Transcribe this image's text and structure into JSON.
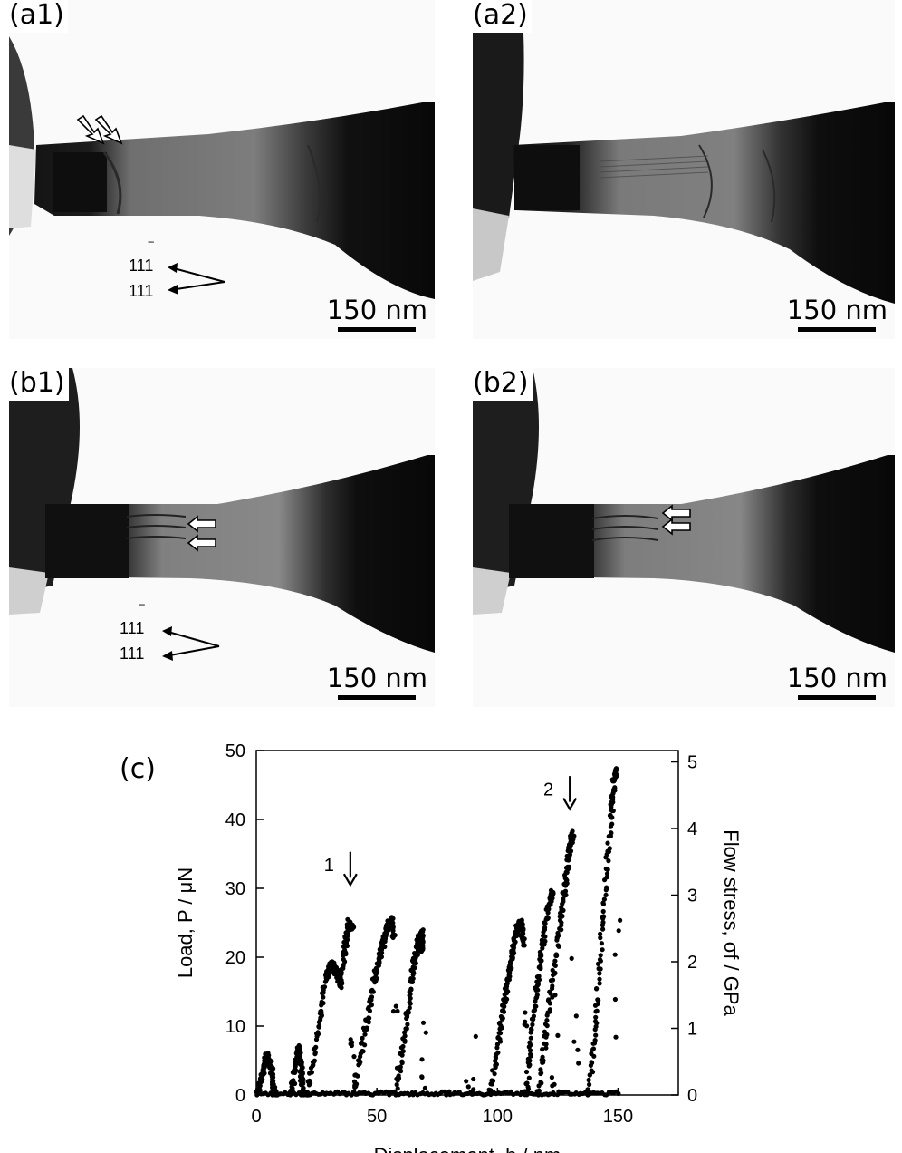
{
  "panels": [
    {
      "id": "a1",
      "label": "(a1)",
      "scale": "150 nm",
      "miller": [
        "111",
        "111"
      ],
      "arrow_style": "hollow-diagonal"
    },
    {
      "id": "a2",
      "label": "(a2)",
      "scale": "150 nm"
    },
    {
      "id": "b1",
      "label": "(b1)",
      "scale": "150 nm",
      "miller": [
        "111",
        "111"
      ],
      "arrow_style": "hollow-horizontal"
    },
    {
      "id": "b2",
      "label": "(b2)",
      "scale": "150 nm",
      "arrow_style": "hollow-horizontal"
    }
  ],
  "chart_data": {
    "type": "scatter",
    "label": "(c)",
    "xlabel": "Displacement, h / nm",
    "ylabel": "Load, P / μN",
    "y2label": "Flow stress, σf / GPa",
    "xlim": [
      0,
      175
    ],
    "ylim": [
      0,
      50
    ],
    "y2lim": [
      0,
      5.17
    ],
    "xticks": [
      0,
      50,
      100,
      150
    ],
    "yticks": [
      0,
      10,
      20,
      30,
      40,
      50
    ],
    "y2ticks": [
      0,
      1,
      2,
      3,
      4,
      5
    ],
    "grid": false,
    "annotations": [
      {
        "text": "1",
        "x": 39,
        "y": 30.5
      },
      {
        "text": "2",
        "x": 130,
        "y": 41.5
      }
    ],
    "series": [
      {
        "segments": [
          {
            "type": "bump",
            "x": [
              0.5,
              3,
              4.5,
              6,
              7.5
            ],
            "y": [
              0,
              4,
              5.8,
              4,
              0
            ]
          },
          {
            "type": "bump",
            "x": [
              14.5,
              16,
              17.5,
              18.5,
              19.5
            ],
            "y": [
              0,
              4,
              6.8,
              4,
              0
            ]
          },
          {
            "type": "ramp",
            "x": [
              21,
              26,
              29,
              31,
              33,
              35,
              37,
              38.5,
              40
            ],
            "y": [
              0,
              10,
              17.5,
              19,
              18,
              16,
              22,
              25,
              24
            ]
          },
          {
            "type": "ramp",
            "x": [
              40,
              45,
              49,
              52,
              54,
              56,
              57
            ],
            "y": [
              0,
              9,
              17,
              21,
              24,
              25.5,
              23
            ]
          },
          {
            "type": "ramp",
            "x": [
              58,
              62,
              65,
              67,
              68.5,
              69
            ],
            "y": [
              0,
              10,
              18,
              22,
              23.5,
              21
            ]
          },
          {
            "type": "ramp",
            "x": [
              97,
              101,
              104,
              106,
              108,
              109.5,
              111
            ],
            "y": [
              0,
              9,
              16,
              20,
              24,
              25,
              22
            ]
          },
          {
            "type": "ramp",
            "x": [
              112,
              115,
              118,
              121,
              123
            ],
            "y": [
              0,
              12,
              20,
              27,
              30
            ]
          },
          {
            "type": "ramp",
            "x": [
              117,
              121,
              125,
              128,
              130,
              131.5
            ],
            "y": [
              0,
              12,
              22,
              30,
              36,
              38
            ]
          },
          {
            "type": "ramp",
            "x": [
              138,
              141,
              144,
              147,
              148.5,
              149.5
            ],
            "y": [
              0,
              12,
              27,
              40,
              46,
              47
            ]
          }
        ]
      }
    ]
  }
}
